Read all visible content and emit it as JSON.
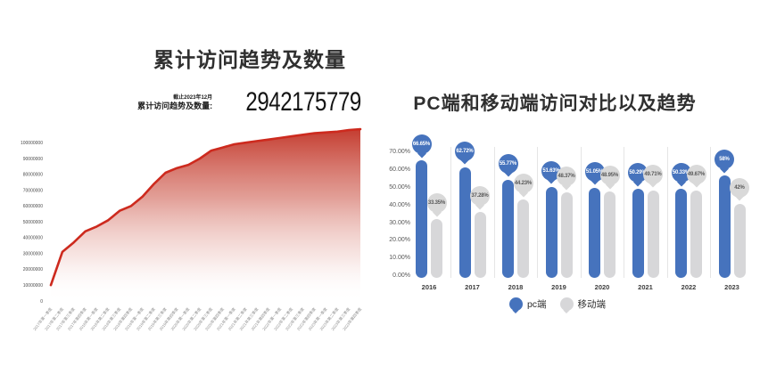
{
  "chart_data": [
    {
      "id": "cumulative-visits-area",
      "type": "area",
      "title": "累计访问趋势及数量",
      "stat_note": "截止2023年12月",
      "stat_label": "累计访问趋势及数量:",
      "stat_value": "2942175779",
      "categories": [
        "2017年第一季度",
        "2017年第二季度",
        "2017年第三季度",
        "2017年第四季度",
        "2018年第一季度",
        "2018年第二季度",
        "2018年第三季度",
        "2018年第四季度",
        "2019年第一季度",
        "2019年第二季度",
        "2019年第三季度",
        "2019年第四季度",
        "2020年第一季度",
        "2020年第二季度",
        "2020年第三季度",
        "2020年第四季度",
        "2021年第一季度",
        "2021年第二季度",
        "2021年第三季度",
        "2021年第四季度",
        "2022年第一季度",
        "2022年第二季度",
        "2022年第三季度",
        "2022年第四季度",
        "2023年第一季度",
        "2023年第二季度",
        "2023年第三季度",
        "2023年第四季度"
      ],
      "values": [
        10000000,
        31000000,
        37000000,
        44000000,
        47000000,
        51000000,
        57000000,
        60000000,
        66000000,
        74000000,
        81000000,
        84000000,
        86000000,
        90000000,
        95000000,
        97000000,
        99000000,
        100000000,
        101000000,
        102000000,
        103000000,
        104000000,
        105000000,
        106000000,
        106500000,
        107000000,
        108000000,
        108500000
      ],
      "yticks": [
        0,
        10000000,
        20000000,
        30000000,
        40000000,
        50000000,
        60000000,
        70000000,
        80000000,
        90000000,
        100000000
      ],
      "ylim": [
        0,
        111000000
      ],
      "grid": false,
      "legend_position": "none",
      "line_color": "#cd2a1e",
      "fill_top_color": "#c23528"
    },
    {
      "id": "pc-vs-mobile-bars",
      "type": "bar",
      "title": "PC端和移动端访问对比以及趋势",
      "categories": [
        "2016",
        "2017",
        "2018",
        "2019",
        "2020",
        "2021",
        "2022",
        "2023"
      ],
      "series": [
        {
          "name": "pc端",
          "color": "#4673bd",
          "label_bg": "#4673bd",
          "label_text_color": "#ffffff",
          "values": [
            66.65,
            62.72,
            55.77,
            51.63,
            51.05,
            50.29,
            50.33,
            58
          ],
          "value_labels": [
            "66.65%",
            "62.72%",
            "55.77%",
            "51.63%",
            "51.05%",
            "50.29%",
            "50.33%",
            "58%"
          ]
        },
        {
          "name": "移动端",
          "color": "#d7d7d9",
          "label_bg": "#d9d9d9",
          "label_text_color": "#595959",
          "values": [
            33.35,
            37.28,
            44.23,
            48.37,
            48.95,
            49.71,
            49.67,
            42
          ],
          "value_labels": [
            "33.35%",
            "37.28%",
            "44.23%",
            "48.37%",
            "48.95%",
            "49.71%",
            "49.67%",
            "42%"
          ]
        }
      ],
      "yticks_labels": [
        "0.00%",
        "10.00%",
        "20.00%",
        "30.00%",
        "40.00%",
        "50.00%",
        "60.00%",
        "70.00%"
      ],
      "ylim": [
        0,
        71
      ],
      "grid": false,
      "legend_position": "bottom"
    }
  ]
}
